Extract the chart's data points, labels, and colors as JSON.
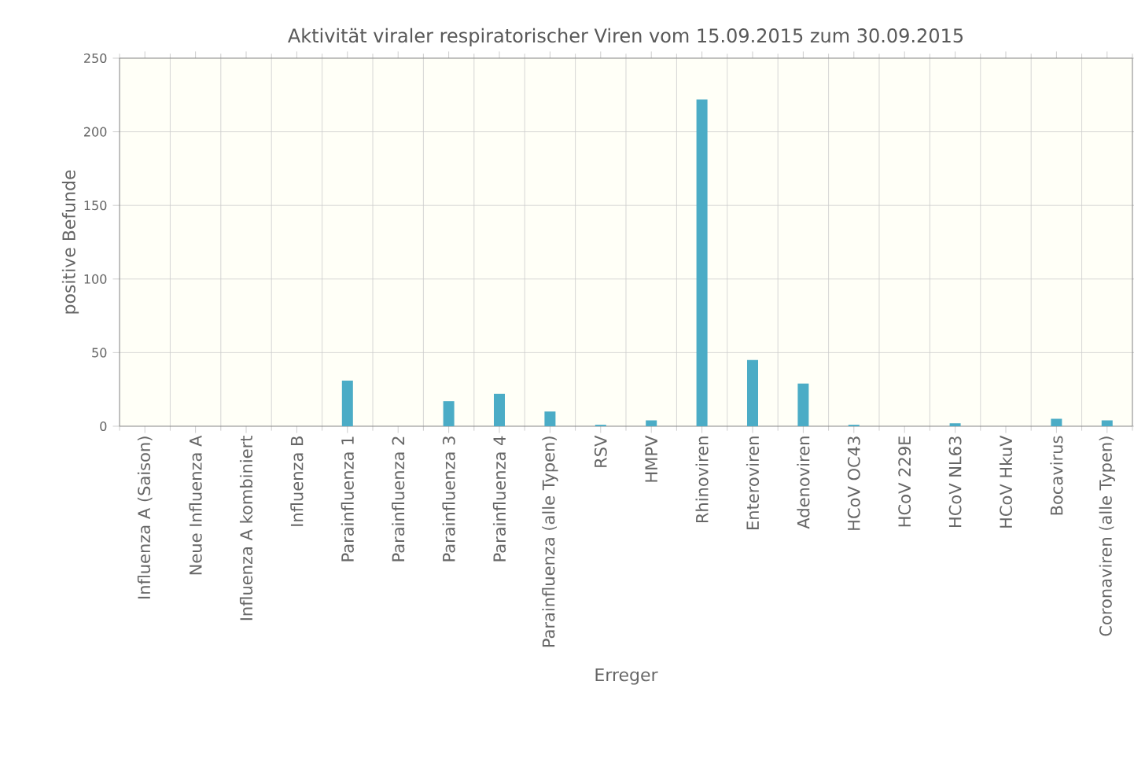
{
  "chart_data": {
    "type": "bar",
    "title": "Aktivität viraler respiratorischer Viren vom 15.09.2015 zum 30.09.2015",
    "xlabel": "Erreger",
    "ylabel": "positive Befunde",
    "categories": [
      "Influenza A (Saison)",
      "Neue Influenza A",
      "Influenza A kombiniert",
      "Influenza B",
      "Parainfluenza 1",
      "Parainfluenza 2",
      "Parainfluenza 3",
      "Parainfluenza 4",
      "Parainfluenza (alle Typen)",
      "RSV",
      "HMPV",
      "Rhinoviren",
      "Enteroviren",
      "Adenoviren",
      "HCoV OC43",
      "HCoV 229E",
      "HCoV NL63",
      "HCoV HkuV",
      "Bocavirus",
      "Coronaviren (alle Typen)"
    ],
    "values": [
      0,
      0,
      0,
      0,
      31,
      0,
      17,
      22,
      10,
      1,
      4,
      222,
      45,
      29,
      1,
      0,
      2,
      0,
      5,
      4
    ],
    "color": "#4bacc6",
    "ylim": [
      0,
      250
    ],
    "yticks": [
      0,
      50,
      100,
      150,
      200,
      250
    ],
    "grid": true
  }
}
